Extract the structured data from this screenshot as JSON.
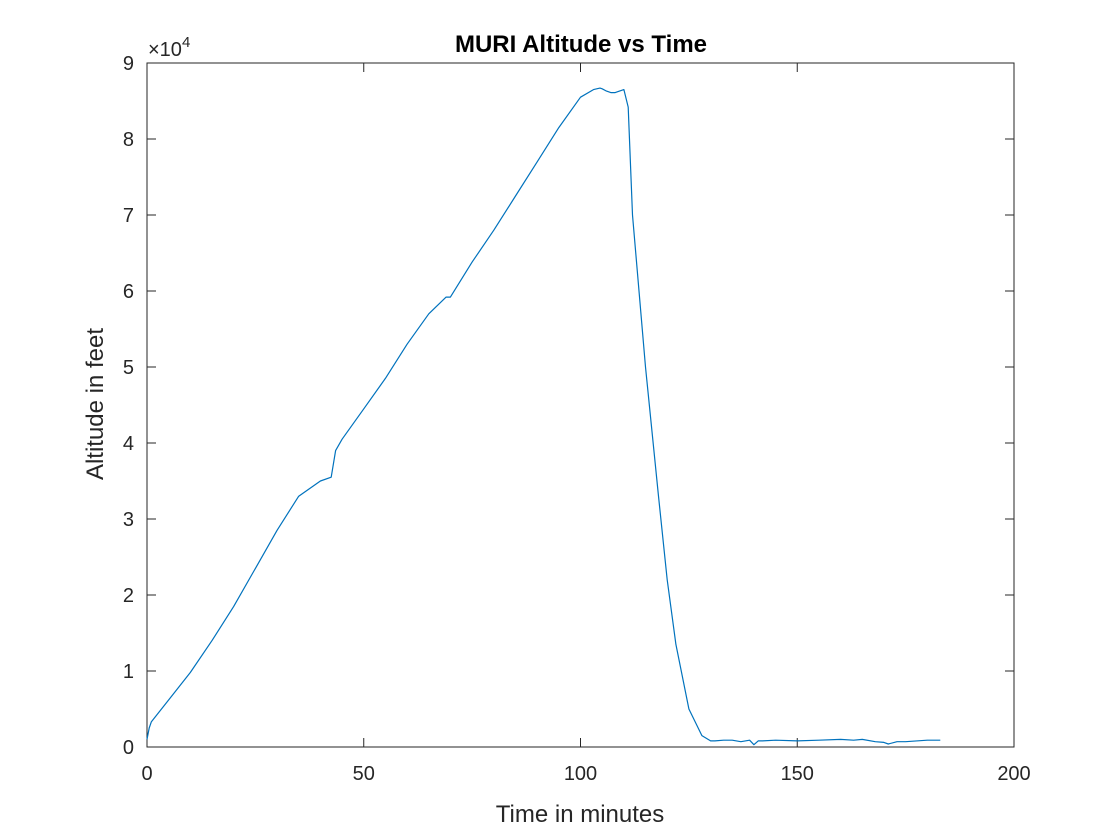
{
  "chart_data": {
    "type": "line",
    "title": "MURI Altitude vs Time",
    "xlabel": "Time in minutes",
    "ylabel": "Altitude in feet",
    "xlim": [
      0,
      200
    ],
    "ylim": [
      0,
      90000
    ],
    "xticks": [
      0,
      50,
      100,
      150,
      200
    ],
    "xtick_labels": [
      "0",
      "50",
      "100",
      "150",
      "200"
    ],
    "yticks": [
      0,
      10000,
      20000,
      30000,
      40000,
      50000,
      60000,
      70000,
      80000,
      90000
    ],
    "ytick_labels": [
      "0",
      "1",
      "2",
      "3",
      "4",
      "5",
      "6",
      "7",
      "8",
      "9"
    ],
    "y_exponent": {
      "base": "×10",
      "power": "4"
    },
    "grid": false,
    "line_color": "#0072BD",
    "series": [
      {
        "x": [
          0,
          0.5,
          1,
          5,
          10,
          15,
          20,
          25,
          30,
          35,
          40,
          42.5,
          43.5,
          45,
          50,
          55,
          60,
          65,
          69,
          70,
          75,
          80,
          85,
          90,
          95,
          100,
          103,
          104.5,
          105,
          106,
          107,
          108,
          109,
          110,
          111,
          112,
          115,
          118,
          120,
          122,
          125,
          128,
          130,
          131,
          133,
          135,
          137,
          139,
          140,
          141,
          142,
          145,
          150,
          155,
          160,
          163,
          165,
          168,
          170,
          171,
          173,
          175,
          180,
          183
        ],
        "y": [
          1000,
          2500,
          3300,
          6200,
          9800,
          14000,
          18500,
          23500,
          28500,
          33000,
          35000,
          35500,
          39000,
          40500,
          44500,
          48500,
          53000,
          57000,
          59200,
          59200,
          63800,
          68000,
          72500,
          77000,
          81500,
          85500,
          86500,
          86700,
          86600,
          86300,
          86100,
          86100,
          86300,
          86500,
          84200,
          70000,
          50000,
          33000,
          22000,
          13500,
          5000,
          1500,
          800,
          800,
          900,
          900,
          700,
          900,
          300,
          800,
          800,
          900,
          800,
          900,
          1000,
          900,
          1000,
          700,
          600,
          400,
          700,
          700,
          900,
          900
        ]
      }
    ]
  }
}
